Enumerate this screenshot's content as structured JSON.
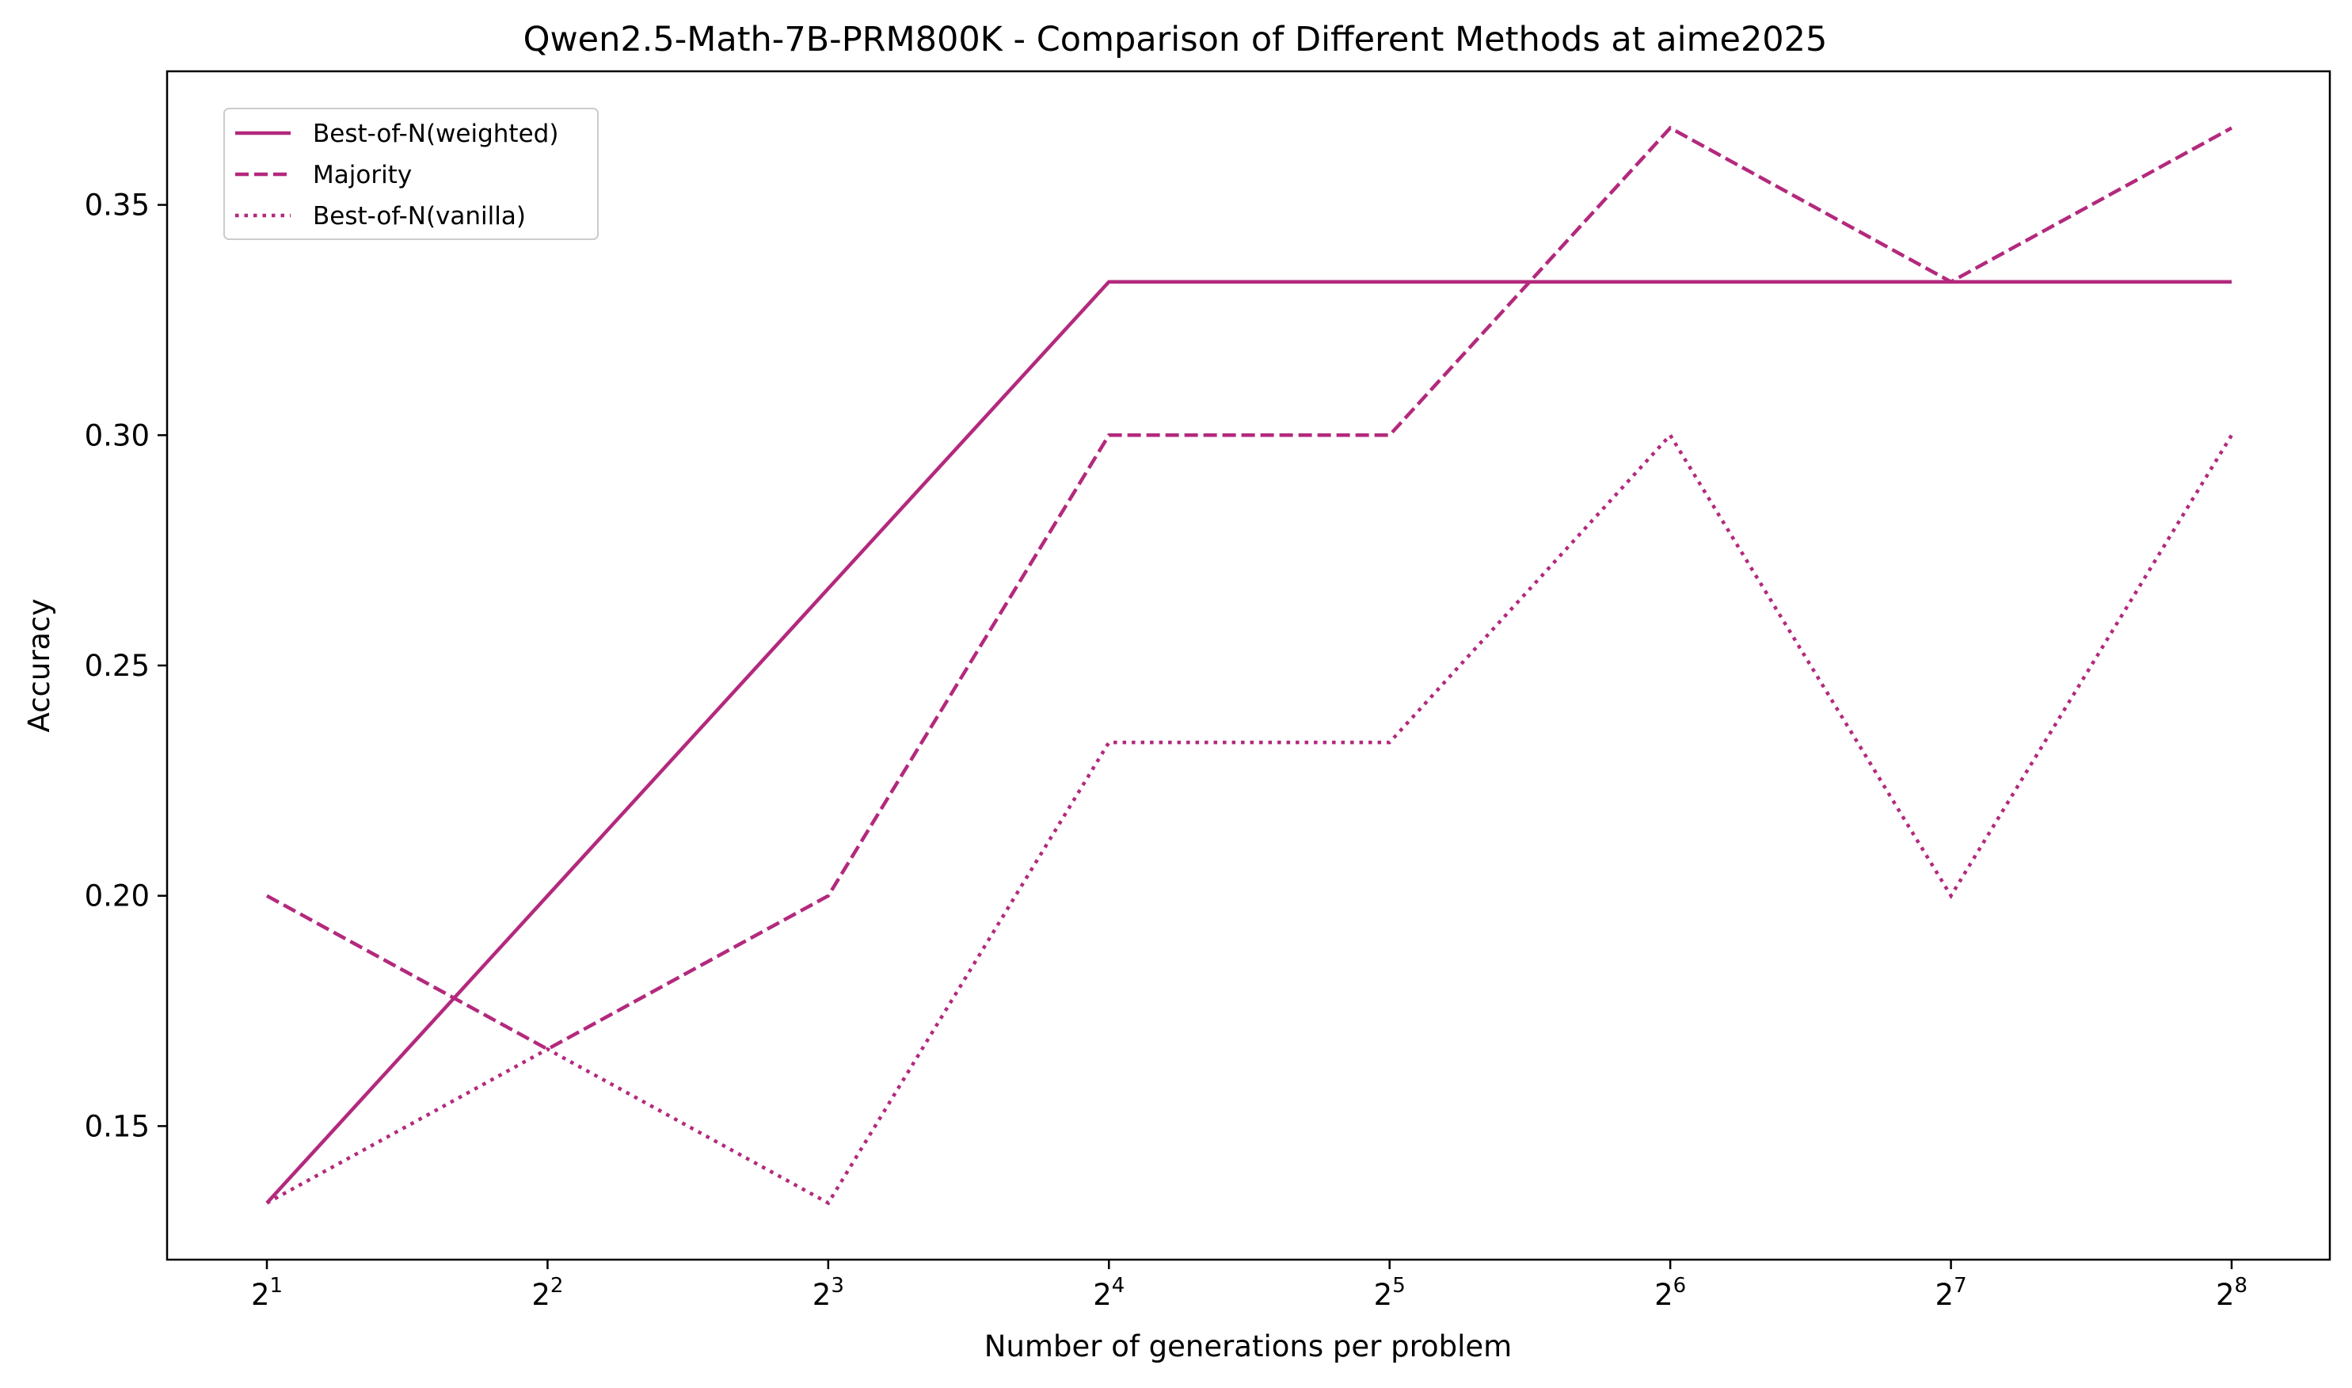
{
  "chart_data": {
    "type": "line",
    "title": "Qwen2.5-Math-7B-PRM800K - Comparison of Different Methods at aime2025",
    "xlabel": "Number of generations per problem",
    "ylabel": "Accuracy",
    "x_scale": "log2",
    "x": [
      2,
      4,
      8,
      16,
      32,
      64,
      128,
      256
    ],
    "x_tick_labels": [
      {
        "base": "2",
        "exp": "1"
      },
      {
        "base": "2",
        "exp": "2"
      },
      {
        "base": "2",
        "exp": "3"
      },
      {
        "base": "2",
        "exp": "4"
      },
      {
        "base": "2",
        "exp": "5"
      },
      {
        "base": "2",
        "exp": "6"
      },
      {
        "base": "2",
        "exp": "7"
      },
      {
        "base": "2",
        "exp": "8"
      }
    ],
    "ylim": [
      0.121,
      0.379
    ],
    "y_ticks": [
      0.15,
      0.2,
      0.25,
      0.3,
      0.35
    ],
    "y_tick_labels": [
      "0.15",
      "0.20",
      "0.25",
      "0.30",
      "0.35"
    ],
    "grid": false,
    "legend_position": "top-left",
    "series": [
      {
        "name": "Best-of-N(weighted)",
        "style": "solid",
        "color": "#b3297d",
        "values": [
          0.1333,
          0.2,
          0.2667,
          0.3333,
          0.3333,
          0.3333,
          0.3333,
          0.3333
        ]
      },
      {
        "name": "Majority",
        "style": "dashed",
        "color": "#b3297d",
        "values": [
          0.2,
          0.1667,
          0.2,
          0.3,
          0.3,
          0.3667,
          0.3333,
          0.3667
        ]
      },
      {
        "name": "Best-of-N(vanilla)",
        "style": "dotted",
        "color": "#b3297d",
        "values": [
          0.1333,
          0.1667,
          0.1333,
          0.2333,
          0.2333,
          0.3,
          0.2,
          0.3
        ]
      }
    ]
  }
}
